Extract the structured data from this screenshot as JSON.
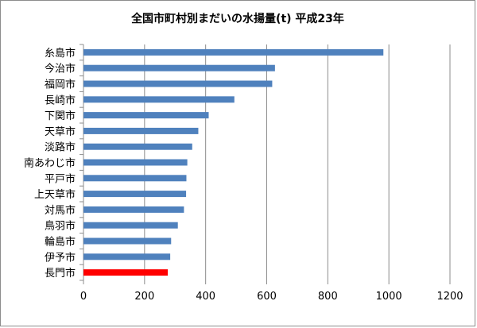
{
  "chart_data": {
    "type": "bar",
    "orientation": "horizontal",
    "title": "全国市町村別まだいの水揚量(t) 平成23年",
    "categories": [
      "糸島市",
      "今治市",
      "福岡市",
      "長崎市",
      "下関市",
      "天草市",
      "淡路市",
      "南あわじ市",
      "平戸市",
      "上天草市",
      "対馬市",
      "鳥羽市",
      "輪島市",
      "伊予市",
      "長門市"
    ],
    "values": [
      982,
      627,
      618,
      494,
      410,
      376,
      356,
      340,
      337,
      336,
      329,
      309,
      287,
      284,
      276
    ],
    "xlim": [
      0,
      1200
    ],
    "xticks": [
      "0",
      "200",
      "400",
      "600",
      "800",
      "1000",
      "1200"
    ],
    "grid": true,
    "colors": {
      "default": "#4f81bd",
      "highlight": "#ff0000"
    },
    "highlight_category": "長門市"
  }
}
